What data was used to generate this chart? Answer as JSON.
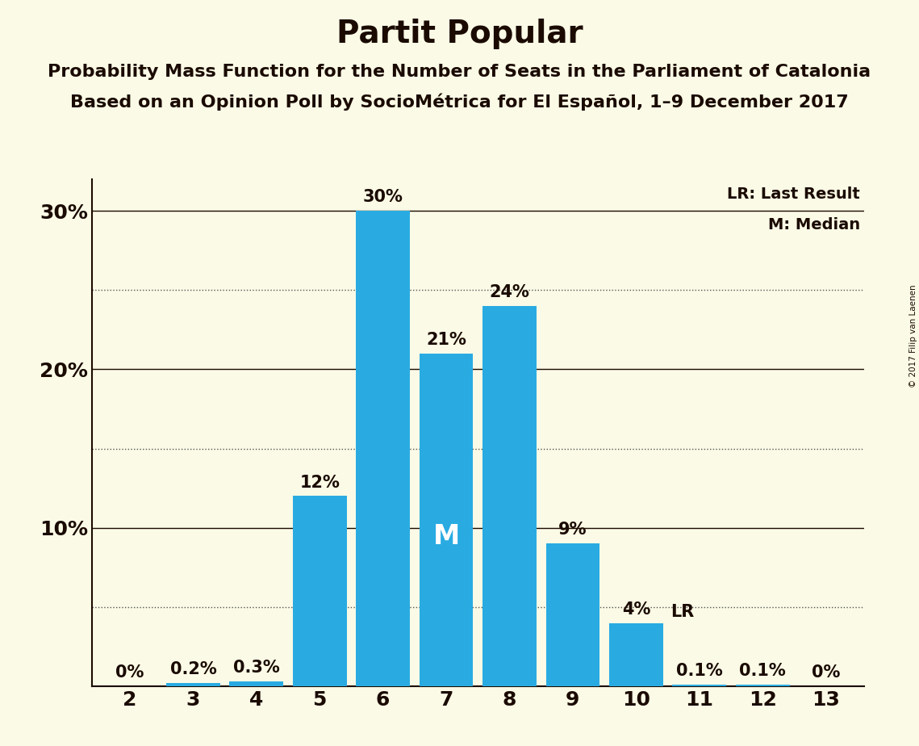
{
  "title": "Partit Popular",
  "subtitle1": "Probability Mass Function for the Number of Seats in the Parliament of Catalonia",
  "subtitle2": "Based on an Opinion Poll by SocioMétrica for El Español, 1–9 December 2017",
  "copyright": "© 2017 Filip van Laenen",
  "categories": [
    2,
    3,
    4,
    5,
    6,
    7,
    8,
    9,
    10,
    11,
    12,
    13
  ],
  "values": [
    0.0,
    0.2,
    0.3,
    12.0,
    30.0,
    21.0,
    24.0,
    9.0,
    4.0,
    0.1,
    0.1,
    0.0
  ],
  "bar_labels": [
    "0%",
    "0.2%",
    "0.3%",
    "12%",
    "30%",
    "21%",
    "24%",
    "9%",
    "4%",
    "0.1%",
    "0.1%",
    "0%"
  ],
  "bar_color": "#29ABE2",
  "background_color": "#FAFAE6",
  "text_color": "#1A0A00",
  "median_seat": 7,
  "last_result_seat": 10,
  "ylim": [
    0,
    32
  ],
  "solid_gridlines": [
    10,
    20,
    30
  ],
  "dotted_gridlines": [
    5,
    15,
    25
  ],
  "ytick_positions": [
    10,
    20,
    30
  ],
  "ytick_labels": [
    "10%",
    "20%",
    "30%"
  ],
  "legend_lr": "LR: Last Result",
  "legend_m": "M: Median",
  "title_fontsize": 28,
  "subtitle_fontsize": 16,
  "label_fontsize": 15,
  "tick_fontsize": 18
}
